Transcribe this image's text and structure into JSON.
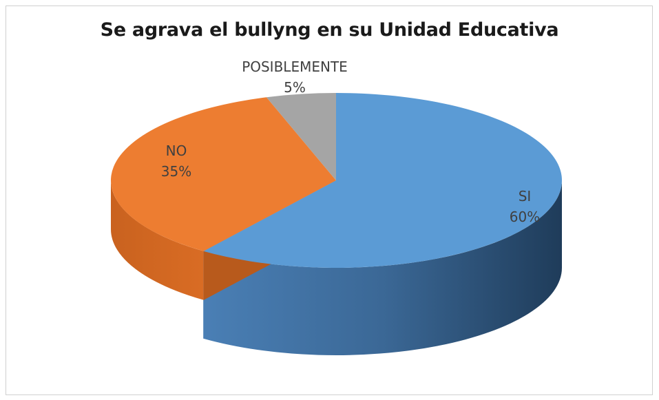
{
  "chart_data": {
    "type": "pie",
    "title": "Se agrava el bullyng en su Unidad Educativa",
    "slices": [
      {
        "label": "SI",
        "value": 60,
        "percent_label": "60%",
        "color": "#5b9bd5"
      },
      {
        "label": "NO",
        "value": 35,
        "percent_label": "35%",
        "color": "#ed7d31"
      },
      {
        "label": "POSIBLEMENTE",
        "value": 5,
        "percent_label": "5%",
        "color": "#a5a5a5"
      }
    ],
    "legend": "none",
    "style": "3d-exploded-tilted"
  }
}
